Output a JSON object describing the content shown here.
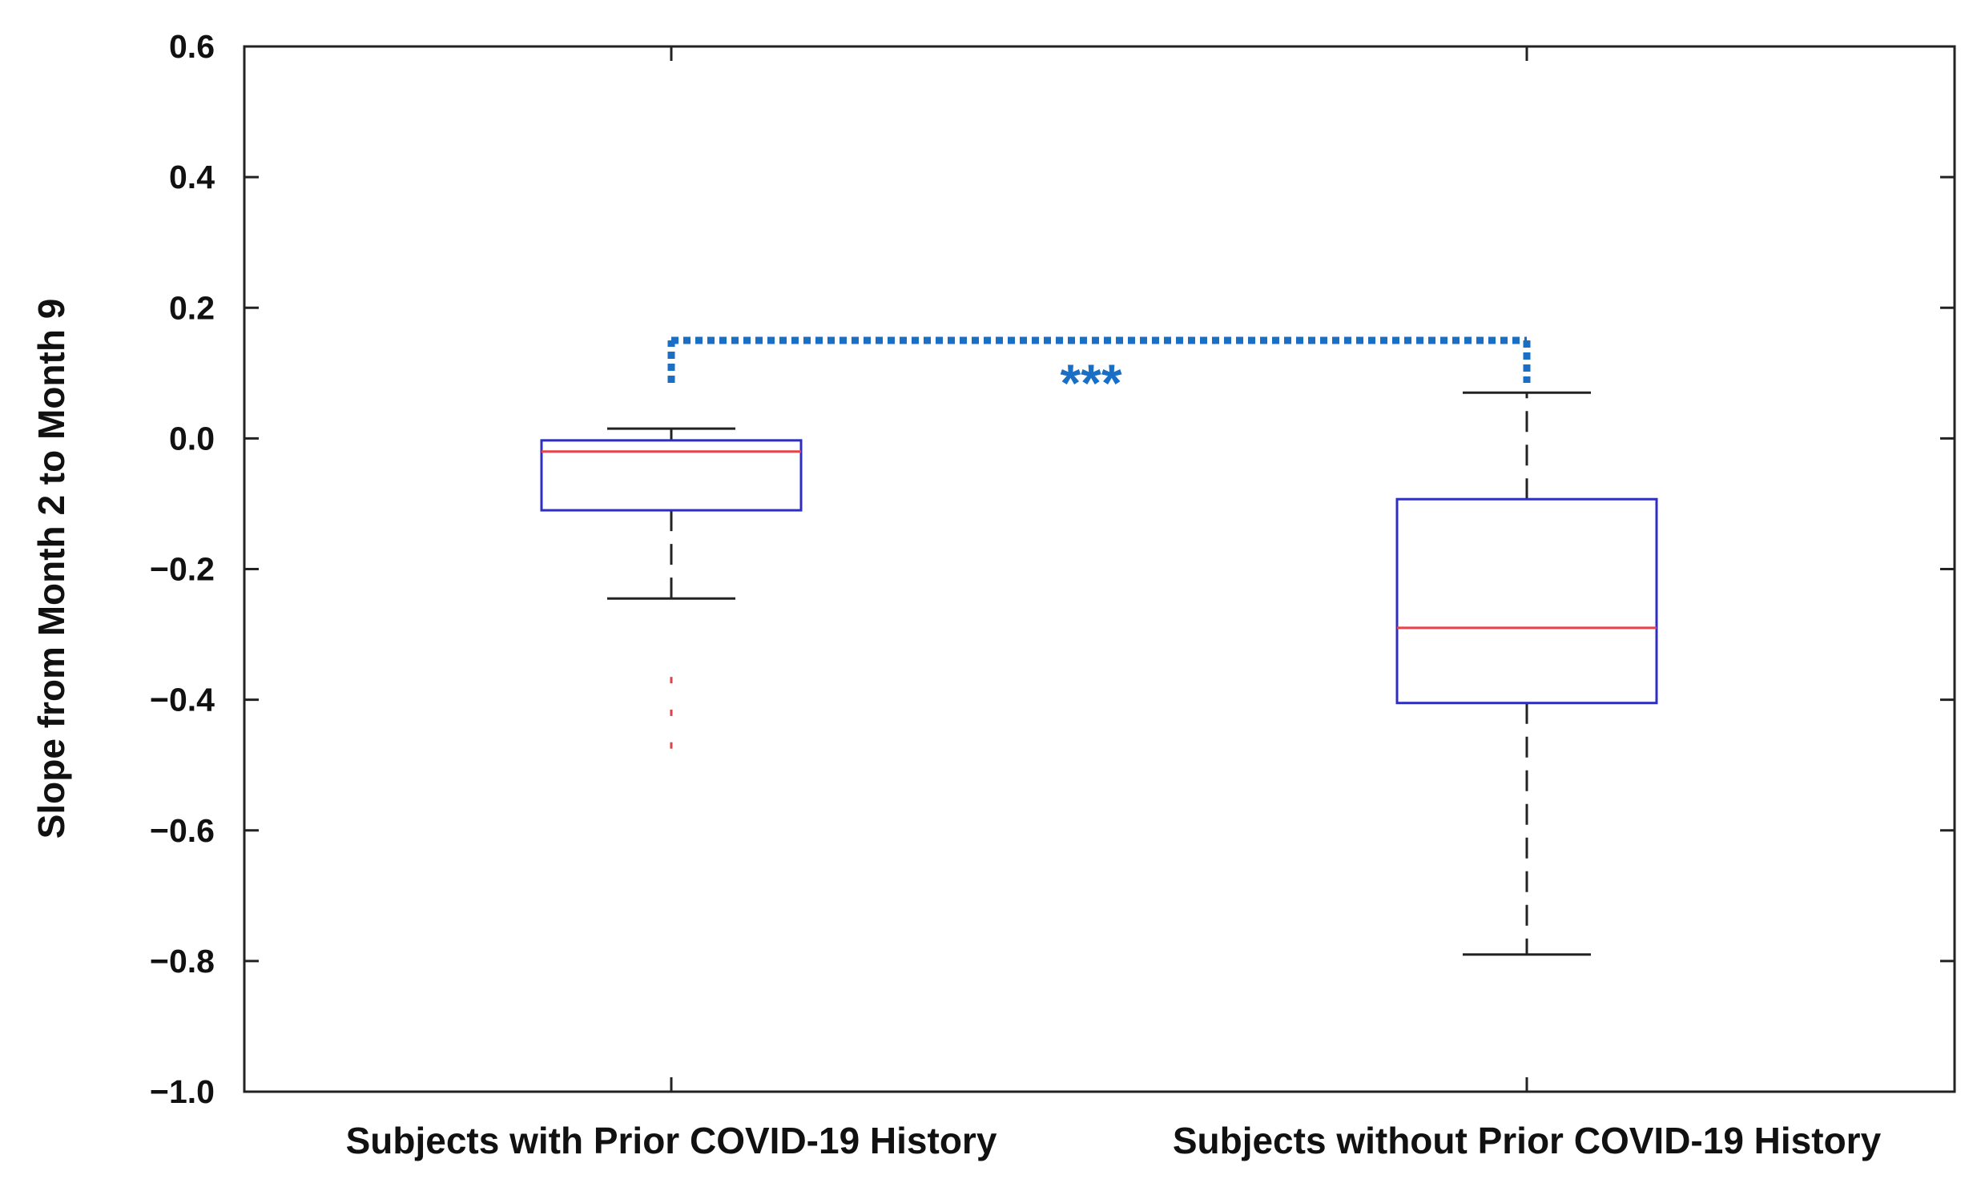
{
  "chart_data": {
    "type": "box",
    "title": "",
    "xlabel": "",
    "ylabel": "Slope from Month 2 to Month 9",
    "ylim": [
      -1.0,
      0.6
    ],
    "yticks": [
      0.6,
      0.4,
      0.2,
      0.0,
      -0.2,
      -0.4,
      -0.6,
      -0.8,
      -1.0
    ],
    "ytick_labels": [
      "0.6",
      "0.4",
      "0.2",
      "0.0",
      "−0.2",
      "−0.4",
      "−0.6",
      "−0.8",
      "−1.0"
    ],
    "categories": [
      "Subjects with Prior COVID-19 History",
      "Subjects without Prior COVID-19 History"
    ],
    "boxes": [
      {
        "name": "Subjects with Prior COVID-19 History",
        "whisker_low": -0.245,
        "q1": -0.11,
        "median": -0.02,
        "q3": -0.003,
        "whisker_high": 0.015,
        "outliers": [
          -0.37,
          -0.42,
          -0.47
        ]
      },
      {
        "name": "Subjects without Prior COVID-19 History",
        "whisker_low": -0.79,
        "q1": -0.405,
        "median": -0.29,
        "q3": -0.093,
        "whisker_high": 0.07,
        "outliers": []
      }
    ],
    "significance": {
      "label": "***",
      "bracket_y": 0.15
    },
    "colors": {
      "box": "#2f2fbf",
      "median": "#e8424c",
      "whisker": "#222222",
      "outlier": "#e0404a",
      "significance": "#1a6fc4",
      "axis": "#222222"
    }
  }
}
